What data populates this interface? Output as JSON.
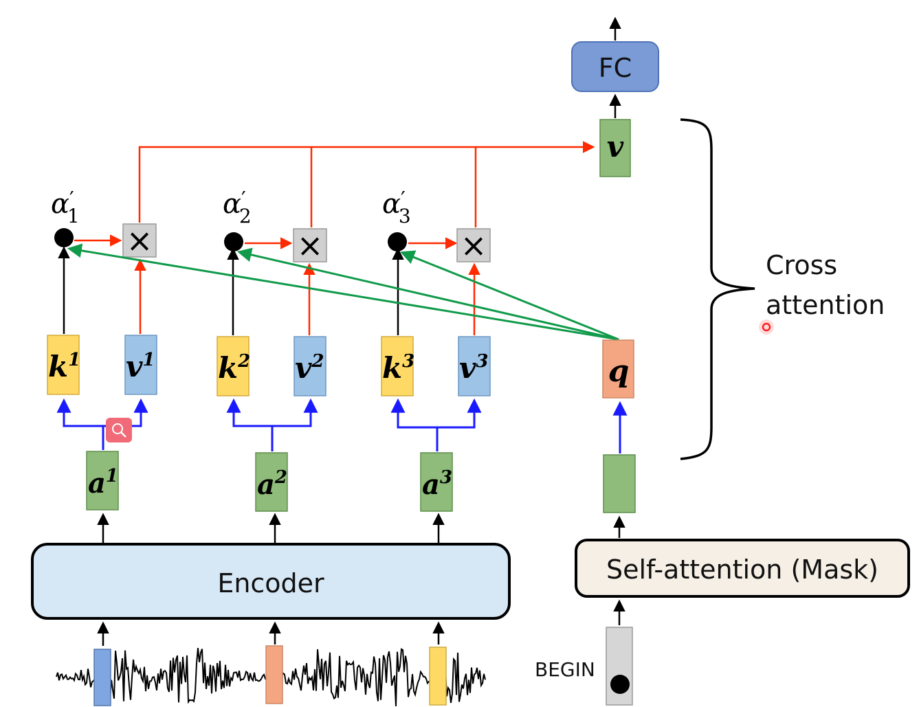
{
  "labels": {
    "fc": "FC",
    "encoder": "Encoder",
    "self_attention": "Self-attention (Mask)",
    "begin": "BEGIN",
    "cross_line1": "Cross",
    "cross_line2": "attention"
  },
  "alphas": [
    {
      "sym": "α",
      "prime": "′",
      "sub": "1"
    },
    {
      "sym": "α",
      "prime": "′",
      "sub": "2"
    },
    {
      "sym": "α",
      "prime": "′",
      "sub": "3"
    }
  ],
  "keys": [
    {
      "base": "k",
      "sup": "1"
    },
    {
      "base": "k",
      "sup": "2"
    },
    {
      "base": "k",
      "sup": "3"
    }
  ],
  "values": [
    {
      "base": "v",
      "sup": "1"
    },
    {
      "base": "v",
      "sup": "2"
    },
    {
      "base": "v",
      "sup": "3"
    }
  ],
  "encoder_outputs": [
    {
      "base": "a",
      "sup": "1"
    },
    {
      "base": "a",
      "sup": "2"
    },
    {
      "base": "a",
      "sup": "3"
    }
  ],
  "query": {
    "base": "q"
  },
  "output_vector": {
    "base": "v"
  },
  "multiply_symbol": "×",
  "colors": {
    "key_fill": "#ffd966",
    "value_fill": "#9dc3e6",
    "encoder_out_fill": "#8fbc7a",
    "query_fill": "#f4a582",
    "encoder_fill": "#d6e7f5",
    "self_attn_fill": "#f5efe6",
    "fc_fill": "#7a9bd6",
    "red_arrow": "#ff2a00",
    "blue_arrow": "#1a1aff",
    "green_arrow": "#109a4a"
  }
}
